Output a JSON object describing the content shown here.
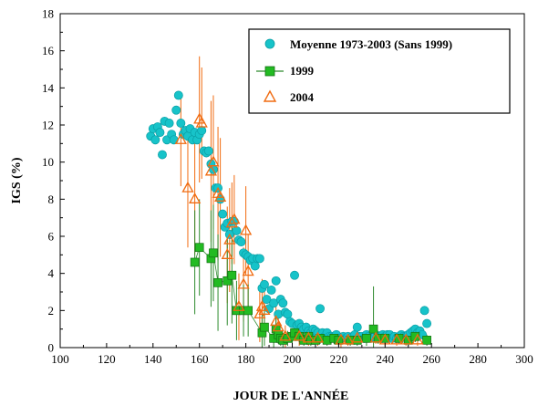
{
  "chart_data": {
    "type": "scatter",
    "xlabel": "JOUR DE L'ANNÉE",
    "ylabel": "IGS (%)",
    "xlim": [
      100,
      300
    ],
    "ylim": [
      0,
      18
    ],
    "xticks": [
      "100",
      "120",
      "140",
      "160",
      "180",
      "200",
      "220",
      "240",
      "260",
      "280",
      "300"
    ],
    "yticks": [
      "0",
      "2",
      "4",
      "6",
      "8",
      "10",
      "12",
      "14",
      "16",
      "18"
    ],
    "grid": false,
    "legend_position": "top-right",
    "colors": {
      "moyenne": "#17c3c9",
      "y1999": "#22bb22",
      "y2004": "#f06b10",
      "errbar_1999": "#2d8a2d",
      "errbar_2004": "#f06b10"
    },
    "series": [
      {
        "name": "Moyenne 1973-2003 (Sans 1999)",
        "marker": "circle",
        "points": [
          [
            139,
            11.4
          ],
          [
            140,
            11.8
          ],
          [
            141,
            11.2
          ],
          [
            142,
            11.9
          ],
          [
            143,
            11.6
          ],
          [
            144,
            10.4
          ],
          [
            145,
            12.2
          ],
          [
            146,
            11.2
          ],
          [
            147,
            12.1
          ],
          [
            148,
            11.5
          ],
          [
            149,
            11.2
          ],
          [
            150,
            12.8
          ],
          [
            151,
            13.6
          ],
          [
            152,
            12.1
          ],
          [
            153,
            11.5
          ],
          [
            154,
            11.7
          ],
          [
            155,
            11.4
          ],
          [
            156,
            11.8
          ],
          [
            157,
            11.2
          ],
          [
            158,
            11.6
          ],
          [
            159,
            11.2
          ],
          [
            160,
            11.5
          ],
          [
            161,
            11.7
          ],
          [
            162,
            10.6
          ],
          [
            163,
            10.5
          ],
          [
            164,
            10.6
          ],
          [
            165,
            9.9
          ],
          [
            166,
            9.6
          ],
          [
            167,
            8.6
          ],
          [
            168,
            8.6
          ],
          [
            169,
            8.0
          ],
          [
            170,
            7.2
          ],
          [
            171,
            6.5
          ],
          [
            172,
            6.7
          ],
          [
            173,
            6.1
          ],
          [
            174,
            6.8
          ],
          [
            175,
            6.8
          ],
          [
            176,
            6.3
          ],
          [
            177,
            5.8
          ],
          [
            178,
            5.7
          ],
          [
            179,
            5.1
          ],
          [
            180,
            5.0
          ],
          [
            181,
            4.9
          ],
          [
            182,
            4.7
          ],
          [
            183,
            4.8
          ],
          [
            184,
            4.4
          ],
          [
            185,
            4.8
          ],
          [
            186,
            4.8
          ],
          [
            187,
            3.2
          ],
          [
            188,
            3.4
          ],
          [
            189,
            2.6
          ],
          [
            190,
            2.1
          ],
          [
            191,
            3.1
          ],
          [
            192,
            2.4
          ],
          [
            193,
            3.6
          ],
          [
            194,
            1.8
          ],
          [
            195,
            2.6
          ],
          [
            196,
            2.4
          ],
          [
            197,
            1.9
          ],
          [
            198,
            1.8
          ],
          [
            199,
            1.4
          ],
          [
            200,
            1.3
          ],
          [
            201,
            3.9
          ],
          [
            202,
            1.2
          ],
          [
            203,
            1.3
          ],
          [
            204,
            1.1
          ],
          [
            205,
            1.0
          ],
          [
            206,
            1.1
          ],
          [
            207,
            0.9
          ],
          [
            208,
            0.8
          ],
          [
            209,
            1.0
          ],
          [
            210,
            0.9
          ],
          [
            211,
            0.8
          ],
          [
            212,
            2.1
          ],
          [
            213,
            0.8
          ],
          [
            214,
            0.6
          ],
          [
            215,
            0.8
          ],
          [
            216,
            0.6
          ],
          [
            217,
            0.6
          ],
          [
            218,
            0.6
          ],
          [
            219,
            0.7
          ],
          [
            220,
            0.5
          ],
          [
            221,
            0.5
          ],
          [
            222,
            0.6
          ],
          [
            223,
            0.5
          ],
          [
            224,
            0.6
          ],
          [
            225,
            0.5
          ],
          [
            226,
            0.6
          ],
          [
            227,
            0.7
          ],
          [
            228,
            1.1
          ],
          [
            229,
            0.6
          ],
          [
            230,
            0.6
          ],
          [
            231,
            0.5
          ],
          [
            232,
            0.7
          ],
          [
            233,
            0.6
          ],
          [
            234,
            0.5
          ],
          [
            235,
            0.6
          ],
          [
            236,
            0.7
          ],
          [
            237,
            0.5
          ],
          [
            238,
            0.6
          ],
          [
            239,
            0.7
          ],
          [
            240,
            0.6
          ],
          [
            241,
            0.7
          ],
          [
            242,
            0.7
          ],
          [
            243,
            0.5
          ],
          [
            244,
            0.6
          ],
          [
            245,
            0.5
          ],
          [
            246,
            0.6
          ],
          [
            247,
            0.7
          ],
          [
            248,
            0.6
          ],
          [
            249,
            0.6
          ],
          [
            250,
            0.7
          ],
          [
            251,
            0.8
          ],
          [
            252,
            0.9
          ],
          [
            253,
            1.0
          ],
          [
            254,
            0.8
          ],
          [
            255,
            0.9
          ],
          [
            256,
            0.7
          ],
          [
            257,
            2.0
          ],
          [
            258,
            1.3
          ]
        ]
      },
      {
        "name": "1999",
        "marker": "square",
        "points": [
          [
            158,
            4.6,
            2.8
          ],
          [
            160,
            5.4,
            2.6
          ],
          [
            165,
            4.8,
            2.6
          ],
          [
            166,
            5.1,
            2.6
          ],
          [
            168,
            3.5,
            2.6
          ],
          [
            172,
            3.6,
            2.4
          ],
          [
            174,
            3.9,
            2.6
          ],
          [
            176,
            2.0,
            1.6
          ],
          [
            179,
            2.0,
            1.4
          ],
          [
            181,
            2.0,
            1.4
          ],
          [
            187,
            0.8,
            1.0
          ],
          [
            188,
            1.1,
            1.0
          ],
          [
            192,
            0.5,
            0.6
          ],
          [
            193,
            1.0,
            0.6
          ],
          [
            194,
            0.7,
            0.5
          ],
          [
            195,
            0.5,
            0.4
          ],
          [
            196,
            0.4,
            0.4
          ],
          [
            198,
            0.5,
            0.4
          ],
          [
            200,
            0.6,
            0.4
          ],
          [
            201,
            0.8,
            0.4
          ],
          [
            203,
            0.6,
            0.3
          ],
          [
            205,
            0.4,
            0.3
          ],
          [
            207,
            0.6,
            0.3
          ],
          [
            208,
            0.4,
            0.3
          ],
          [
            210,
            0.4,
            0.3
          ],
          [
            212,
            0.5,
            0.3
          ],
          [
            215,
            0.4,
            0.3
          ],
          [
            218,
            0.5,
            0.3
          ],
          [
            220,
            0.4,
            0.3
          ],
          [
            225,
            0.4,
            0.3
          ],
          [
            228,
            0.4,
            0.3
          ],
          [
            232,
            0.5,
            0.4
          ],
          [
            235,
            1.0,
            2.3
          ],
          [
            237,
            0.5,
            0.3
          ],
          [
            240,
            0.5,
            0.3
          ],
          [
            246,
            0.5,
            0.3
          ],
          [
            250,
            0.4,
            0.3
          ],
          [
            253,
            0.6,
            0.3
          ],
          [
            258,
            0.4,
            0.3
          ]
        ]
      },
      {
        "name": "2004",
        "marker": "triangle",
        "points": [
          [
            152,
            11.2,
            2.5
          ],
          [
            155,
            8.6,
            3.2
          ],
          [
            158,
            8.0,
            3.0
          ],
          [
            160,
            12.3,
            3.4
          ],
          [
            161,
            12.1,
            3.0
          ],
          [
            165,
            9.5,
            3.8
          ],
          [
            166,
            10.0,
            3.6
          ],
          [
            168,
            8.3,
            3.6
          ],
          [
            169,
            8.1,
            3.2
          ],
          [
            172,
            5.0,
            2.6
          ],
          [
            173,
            5.8,
            2.8
          ],
          [
            174,
            6.7,
            2.2
          ],
          [
            175,
            6.9,
            2.4
          ],
          [
            177,
            2.2,
            1.8
          ],
          [
            179,
            3.4,
            2.0
          ],
          [
            180,
            6.3,
            2.4
          ],
          [
            181,
            4.1,
            2.0
          ],
          [
            186,
            1.8,
            1.5
          ],
          [
            187,
            2.2,
            1.5
          ],
          [
            188,
            2.0,
            1.2
          ],
          [
            193,
            1.4,
            1.0
          ],
          [
            194,
            1.1,
            0.8
          ],
          [
            197,
            0.6,
            0.6
          ],
          [
            203,
            0.6,
            0.5
          ],
          [
            207,
            0.5,
            0.4
          ],
          [
            211,
            0.5,
            0.4
          ],
          [
            221,
            0.4,
            0.4
          ],
          [
            224,
            0.4,
            0.3
          ],
          [
            228,
            0.5,
            0.3
          ],
          [
            236,
            0.5,
            0.3
          ],
          [
            240,
            0.4,
            0.3
          ],
          [
            245,
            0.4,
            0.3
          ],
          [
            249,
            0.4,
            0.3
          ],
          [
            254,
            0.4,
            0.3
          ]
        ]
      }
    ]
  }
}
